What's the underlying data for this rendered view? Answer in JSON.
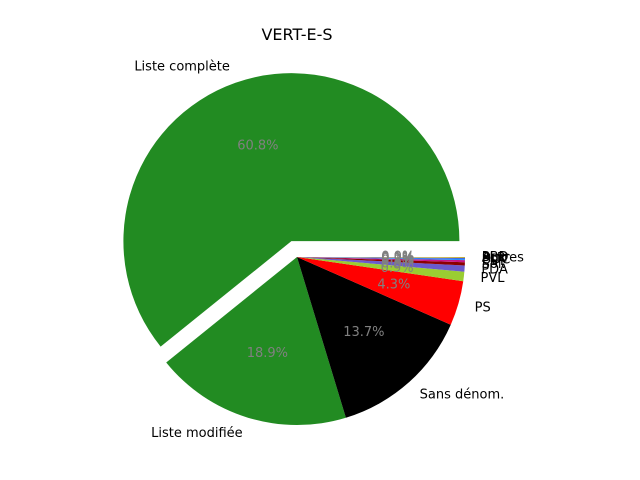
{
  "chart_data": {
    "type": "pie",
    "title": "VERT-E-S",
    "slices": [
      {
        "label": "Liste complète",
        "pct_label": "60.8%",
        "value": 60.8,
        "color": "#228b22",
        "exploded": true
      },
      {
        "label": "Liste modifiée",
        "pct_label": "18.9%",
        "value": 18.9,
        "color": "#228b22",
        "exploded": false
      },
      {
        "label": "Sans dénom.",
        "pct_label": "13.7%",
        "value": 13.7,
        "color": "#000000",
        "exploded": false
      },
      {
        "label": "PS",
        "pct_label": "4.3%",
        "value": 4.3,
        "color": "#ff0000",
        "exploded": false
      },
      {
        "label": "PVL",
        "pct_label": "0.9%",
        "value": 0.9,
        "color": "#9acd32",
        "exploded": false
      },
      {
        "label": "PDA",
        "pct_label": "0.6%",
        "value": 0.6,
        "color": "#6a5acd",
        "exploded": false
      },
      {
        "label": "Sol.",
        "pct_label": "0.3%",
        "value": 0.3,
        "color": "#8b0000",
        "exploded": false
      },
      {
        "label": "PST",
        "pct_label": "0.2%",
        "value": 0.2,
        "color": "#c71585",
        "exploded": false
      },
      {
        "label": "UDC",
        "pct_label": "0.1%",
        "value": 0.1,
        "color": "#1e90ff",
        "exploded": false
      },
      {
        "label": "PLR",
        "pct_label": "0.1%",
        "value": 0.1,
        "color": "#4169e1",
        "exploded": false
      },
      {
        "label": "Autres",
        "pct_label": "0.0%",
        "value": 0.05,
        "color": "#808080",
        "exploded": false
      },
      {
        "label": "PBD",
        "pct_label": "0.0%",
        "value": 0.05,
        "color": "#ffd700",
        "exploded": false
      }
    ]
  }
}
